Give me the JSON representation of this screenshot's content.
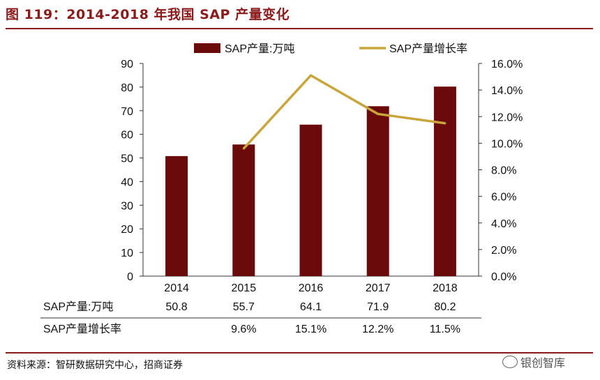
{
  "header": {
    "title": "图 119：2014-2018 年我国 SAP 产量变化"
  },
  "footer": {
    "source": "资料来源：智研数据研究中心，招商证券",
    "watermark": "银创智库"
  },
  "colors": {
    "bar": "#6b0a0a",
    "line": "#c8a63c",
    "accent": "#8b1a1a"
  },
  "icons": {
    "watermark": "wechat-icon"
  },
  "chart_data": {
    "type": "bar",
    "categories": [
      "2014",
      "2015",
      "2016",
      "2017",
      "2018"
    ],
    "series": [
      {
        "name": "SAP产量:万吨",
        "type": "bar",
        "axis": "left",
        "values": [
          50.8,
          55.7,
          64.1,
          71.9,
          80.2
        ],
        "labels": [
          "50.8",
          "55.7",
          "64.1",
          "71.9",
          "80.2"
        ]
      },
      {
        "name": "SAP产量增长率",
        "type": "line",
        "axis": "right",
        "values": [
          null,
          9.6,
          15.1,
          12.2,
          11.5
        ],
        "labels": [
          "",
          "9.6%",
          "15.1%",
          "12.2%",
          "11.5%"
        ]
      }
    ],
    "ylim": [
      0,
      90
    ],
    "yticks": [
      "0",
      "10",
      "20",
      "30",
      "40",
      "50",
      "60",
      "70",
      "80",
      "90"
    ],
    "y2lim": [
      0,
      16
    ],
    "y2ticks": [
      "0.0%",
      "2.0%",
      "4.0%",
      "6.0%",
      "8.0%",
      "10.0%",
      "12.0%",
      "14.0%",
      "16.0%"
    ],
    "legend_position": "top",
    "grid": false
  }
}
